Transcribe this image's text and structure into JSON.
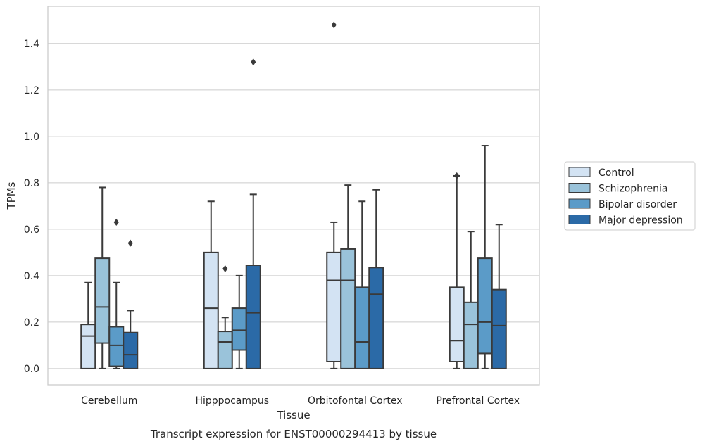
{
  "chart_data": {
    "type": "boxplot",
    "caption": "Transcript expression for ENST00000294413 by tissue",
    "xlabel": "Tissue",
    "ylabel": "TPMs",
    "ylim": [
      -0.07,
      1.56
    ],
    "yticks": [
      0.0,
      0.2,
      0.4,
      0.6,
      0.8,
      1.0,
      1.2,
      1.4
    ],
    "grid": true,
    "legend_position": "right",
    "categories": [
      "Cerebellum",
      "Hipppocampus",
      "Orbitofontal Cortex",
      "Prefrontal Cortex"
    ],
    "series": [
      {
        "name": "Control",
        "color": "#d3e3f3",
        "boxes": [
          {
            "whisker_low": 0.0,
            "q1": 0.0,
            "median": 0.14,
            "q3": 0.19,
            "whisker_high": 0.37,
            "outliers": []
          },
          {
            "whisker_low": 0.0,
            "q1": 0.0,
            "median": 0.26,
            "q3": 0.5,
            "whisker_high": 0.72,
            "outliers": []
          },
          {
            "whisker_low": 0.0,
            "q1": 0.03,
            "median": 0.38,
            "q3": 0.5,
            "whisker_high": 0.63,
            "outliers": [
              1.48
            ]
          },
          {
            "whisker_low": 0.0,
            "q1": 0.03,
            "median": 0.12,
            "q3": 0.35,
            "whisker_high": 0.83,
            "outliers": [
              0.83
            ]
          }
        ]
      },
      {
        "name": "Schizophrenia",
        "color": "#9ac3da",
        "boxes": [
          {
            "whisker_low": 0.0,
            "q1": 0.11,
            "median": 0.265,
            "q3": 0.475,
            "whisker_high": 0.78,
            "outliers": []
          },
          {
            "whisker_low": 0.0,
            "q1": 0.0,
            "median": 0.115,
            "q3": 0.16,
            "whisker_high": 0.22,
            "outliers": [
              0.43
            ]
          },
          {
            "whisker_low": 0.0,
            "q1": 0.0,
            "median": 0.38,
            "q3": 0.515,
            "whisker_high": 0.79,
            "outliers": []
          },
          {
            "whisker_low": 0.0,
            "q1": 0.0,
            "median": 0.19,
            "q3": 0.285,
            "whisker_high": 0.59,
            "outliers": []
          }
        ]
      },
      {
        "name": "Bipolar disorder",
        "color": "#5b9bc8",
        "boxes": [
          {
            "whisker_low": 0.0,
            "q1": 0.01,
            "median": 0.1,
            "q3": 0.18,
            "whisker_high": 0.37,
            "outliers": [
              0.63
            ]
          },
          {
            "whisker_low": 0.0,
            "q1": 0.08,
            "median": 0.165,
            "q3": 0.26,
            "whisker_high": 0.4,
            "outliers": []
          },
          {
            "whisker_low": 0.0,
            "q1": 0.0,
            "median": 0.115,
            "q3": 0.35,
            "whisker_high": 0.72,
            "outliers": []
          },
          {
            "whisker_low": 0.0,
            "q1": 0.065,
            "median": 0.2,
            "q3": 0.475,
            "whisker_high": 0.96,
            "outliers": []
          }
        ]
      },
      {
        "name": "Major depression",
        "color": "#2b6aa7",
        "boxes": [
          {
            "whisker_low": 0.0,
            "q1": 0.0,
            "median": 0.06,
            "q3": 0.155,
            "whisker_high": 0.25,
            "outliers": [
              0.54
            ]
          },
          {
            "whisker_low": 0.0,
            "q1": 0.0,
            "median": 0.24,
            "q3": 0.445,
            "whisker_high": 0.75,
            "outliers": [
              1.32
            ]
          },
          {
            "whisker_low": 0.0,
            "q1": 0.0,
            "median": 0.32,
            "q3": 0.435,
            "whisker_high": 0.77,
            "outliers": []
          },
          {
            "whisker_low": 0.0,
            "q1": 0.0,
            "median": 0.185,
            "q3": 0.34,
            "whisker_high": 0.62,
            "outliers": []
          }
        ]
      }
    ]
  }
}
